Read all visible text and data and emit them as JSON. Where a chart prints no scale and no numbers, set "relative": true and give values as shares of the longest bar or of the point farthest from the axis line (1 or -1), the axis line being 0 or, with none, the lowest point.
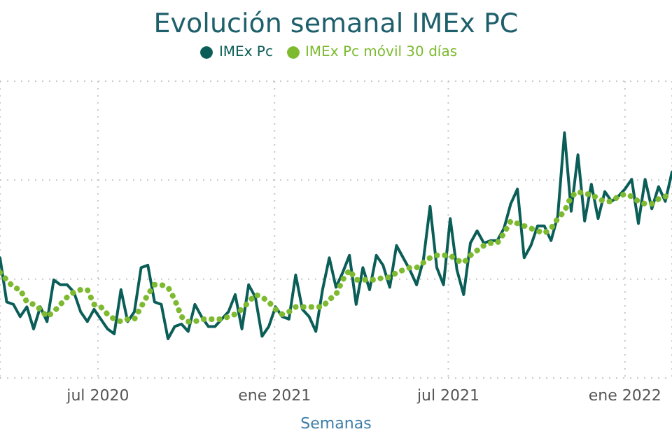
{
  "chart_data": {
    "type": "line",
    "title": "Evolución semanal IMEx PC",
    "xlabel": "Semanas",
    "relative": true,
    "grid": true,
    "legend": "top",
    "marker": "none",
    "xlim": [
      "2020-03-21",
      "2022-02-19"
    ],
    "xticks": [
      {
        "value": "2020-07-01",
        "label": "jul 2020"
      },
      {
        "value": "2021-01-01",
        "label": "ene 2021"
      },
      {
        "value": "2021-07-01",
        "label": "jul 2021"
      },
      {
        "value": "2022-01-01",
        "label": "ene 2022"
      }
    ],
    "x": [
      "2020-03-21",
      "2020-03-28",
      "2020-04-04",
      "2020-04-11",
      "2020-04-18",
      "2020-04-25",
      "2020-05-02",
      "2020-05-09",
      "2020-05-16",
      "2020-05-23",
      "2020-05-30",
      "2020-06-06",
      "2020-06-13",
      "2020-06-20",
      "2020-06-27",
      "2020-07-04",
      "2020-07-11",
      "2020-07-18",
      "2020-07-25",
      "2020-08-01",
      "2020-08-08",
      "2020-08-15",
      "2020-08-22",
      "2020-08-29",
      "2020-09-05",
      "2020-09-12",
      "2020-09-19",
      "2020-09-26",
      "2020-10-03",
      "2020-10-10",
      "2020-10-17",
      "2020-10-24",
      "2020-10-31",
      "2020-11-07",
      "2020-11-14",
      "2020-11-21",
      "2020-11-28",
      "2020-12-05",
      "2020-12-12",
      "2020-12-19",
      "2020-12-26",
      "2021-01-02",
      "2021-01-09",
      "2021-01-16",
      "2021-01-23",
      "2021-01-30",
      "2021-02-06",
      "2021-02-13",
      "2021-02-20",
      "2021-02-27",
      "2021-03-06",
      "2021-03-13",
      "2021-03-20",
      "2021-03-27",
      "2021-04-03",
      "2021-04-10",
      "2021-04-17",
      "2021-04-24",
      "2021-05-01",
      "2021-05-08",
      "2021-05-15",
      "2021-05-22",
      "2021-05-29",
      "2021-06-05",
      "2021-06-12",
      "2021-06-19",
      "2021-06-26",
      "2021-07-03",
      "2021-07-10",
      "2021-07-17",
      "2021-07-24",
      "2021-07-31",
      "2021-08-07",
      "2021-08-14",
      "2021-08-21",
      "2021-08-28",
      "2021-09-04",
      "2021-09-11",
      "2021-09-18",
      "2021-09-25",
      "2021-10-02",
      "2021-10-09",
      "2021-10-16",
      "2021-10-23",
      "2021-10-30",
      "2021-11-06",
      "2021-11-13",
      "2021-11-20",
      "2021-11-27",
      "2021-12-04",
      "2021-12-11",
      "2021-12-18",
      "2021-12-25",
      "2022-01-01",
      "2022-01-08",
      "2022-01-15",
      "2022-01-22",
      "2022-01-29",
      "2022-02-05",
      "2022-02-12",
      "2022-02-19"
    ],
    "series": [
      {
        "name": "IMEx Pc",
        "color": "#0b5e57",
        "line_style": "solid",
        "values": [
          0.49,
          0.31,
          0.3,
          0.25,
          0.29,
          0.2,
          0.29,
          0.23,
          0.4,
          0.38,
          0.38,
          0.35,
          0.27,
          0.23,
          0.28,
          0.24,
          0.2,
          0.18,
          0.36,
          0.23,
          0.27,
          0.45,
          0.46,
          0.31,
          0.3,
          0.16,
          0.21,
          0.22,
          0.19,
          0.3,
          0.25,
          0.21,
          0.21,
          0.24,
          0.27,
          0.34,
          0.2,
          0.38,
          0.33,
          0.17,
          0.21,
          0.29,
          0.25,
          0.24,
          0.42,
          0.28,
          0.25,
          0.19,
          0.36,
          0.49,
          0.37,
          0.43,
          0.5,
          0.3,
          0.45,
          0.36,
          0.5,
          0.46,
          0.37,
          0.54,
          0.49,
          0.44,
          0.38,
          0.48,
          0.7,
          0.45,
          0.38,
          0.65,
          0.44,
          0.34,
          0.55,
          0.6,
          0.55,
          0.56,
          0.56,
          0.61,
          0.71,
          0.77,
          0.49,
          0.54,
          0.62,
          0.62,
          0.56,
          0.66,
          1,
          0.68,
          0.91,
          0.64,
          0.79,
          0.65,
          0.76,
          0.72,
          0.74,
          0.77,
          0.81,
          0.63,
          0.81,
          0.69,
          0.78,
          0.72,
          0.84
        ]
      },
      {
        "name": "IMEx Pc móvil 30 días",
        "color": "#7dba2f",
        "line_style": "dotted",
        "values": [
          0.43,
          0.4,
          0.37,
          0.36,
          0.31,
          0.3,
          0.28,
          0.25,
          0.27,
          0.3,
          0.33,
          0.35,
          0.36,
          0.36,
          0.3,
          0.29,
          0.26,
          0.24,
          0.23,
          0.24,
          0.24,
          0.29,
          0.34,
          0.38,
          0.38,
          0.37,
          0.32,
          0.25,
          0.23,
          0.23,
          0.24,
          0.24,
          0.24,
          0.24,
          0.25,
          0.26,
          0.28,
          0.31,
          0.34,
          0.33,
          0.31,
          0.28,
          0.26,
          0.27,
          0.29,
          0.29,
          0.29,
          0.29,
          0.29,
          0.32,
          0.34,
          0.4,
          0.44,
          0.4,
          0.4,
          0.4,
          0.4,
          0.41,
          0.41,
          0.43,
          0.44,
          0.45,
          0.45,
          0.47,
          0.49,
          0.5,
          0.5,
          0.5,
          0.48,
          0.47,
          0.5,
          0.52,
          0.54,
          0.55,
          0.55,
          0.59,
          0.64,
          0.63,
          0.62,
          0.61,
          0.6,
          0.59,
          0.61,
          0.65,
          0.68,
          0.74,
          0.76,
          0.75,
          0.75,
          0.73,
          0.72,
          0.72,
          0.74,
          0.75,
          0.74,
          0.72,
          0.71,
          0.71,
          0.73,
          0.74,
          0.75
        ]
      }
    ]
  }
}
